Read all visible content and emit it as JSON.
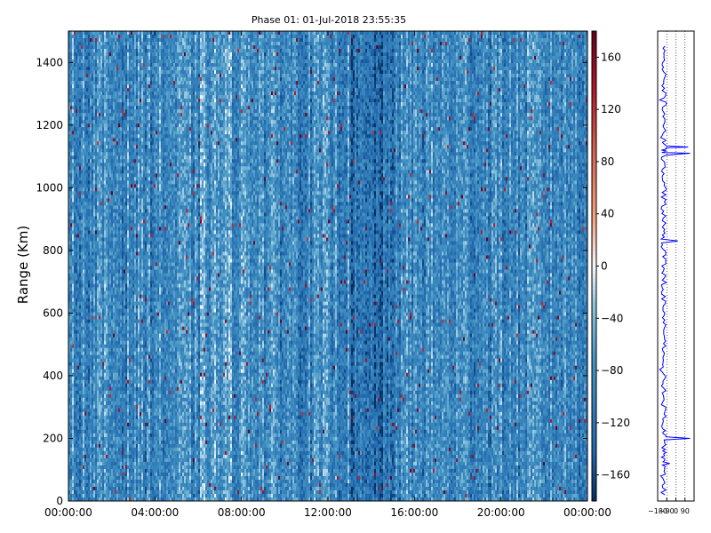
{
  "chart_data": [
    {
      "type": "heatmap",
      "title": "Phase 01: 01-Jul-2018 23:55:35",
      "xlabel": "",
      "ylabel": "Range (Km)",
      "x_ticks": [
        "00:00:00",
        "04:00:00",
        "08:00:00",
        "12:00:00",
        "16:00:00",
        "20:00:00",
        "00:00:00"
      ],
      "x_range_hours": [
        0,
        24
      ],
      "y_ticks": [
        0,
        200,
        400,
        600,
        800,
        1000,
        1200,
        1400
      ],
      "ylim": [
        0,
        1500
      ],
      "colorbar": {
        "ticks": [
          -160,
          -120,
          -80,
          -40,
          0,
          40,
          80,
          120,
          160
        ],
        "range": [
          -180,
          180
        ],
        "colormap": "diverging blue-white-red (RdBu_r)",
        "colors": {
          "low": "#0b2f5c",
          "mid": "#f7f7f7",
          "high": "#67001f"
        }
      },
      "description": "Phase values (degrees) vs time of day and range; predominantly -60 to -160 (blue) with sparse red speckles; darker band around 13:00-15:00."
    },
    {
      "type": "line",
      "xlabel": "",
      "ylabel": "",
      "x_ticks": [
        -180,
        -90,
        0,
        90
      ],
      "xlim": [
        -180,
        180
      ],
      "ylim": [
        0,
        1500
      ],
      "series_color": "#0000ff",
      "grid": "vertical dotted",
      "profile": [
        {
          "range": 20,
          "phase": -110
        },
        {
          "range": 80,
          "phase": -150
        },
        {
          "range": 120,
          "phase": -60
        },
        {
          "range": 160,
          "phase": -130
        },
        {
          "range": 200,
          "phase": 140
        },
        {
          "range": 240,
          "phase": -140
        },
        {
          "range": 300,
          "phase": -100
        },
        {
          "range": 360,
          "phase": -120
        },
        {
          "range": 420,
          "phase": -160
        },
        {
          "range": 480,
          "phase": -130
        },
        {
          "range": 540,
          "phase": -120
        },
        {
          "range": 600,
          "phase": -110
        },
        {
          "range": 660,
          "phase": -140
        },
        {
          "range": 720,
          "phase": -100
        },
        {
          "range": 780,
          "phase": -130
        },
        {
          "range": 830,
          "phase": 20
        },
        {
          "range": 880,
          "phase": -120
        },
        {
          "range": 940,
          "phase": -140
        },
        {
          "range": 1000,
          "phase": -100
        },
        {
          "range": 1060,
          "phase": -130
        },
        {
          "range": 1110,
          "phase": 140
        },
        {
          "range": 1130,
          "phase": 120
        },
        {
          "range": 1160,
          "phase": -150
        },
        {
          "range": 1220,
          "phase": -110
        },
        {
          "range": 1280,
          "phase": -160
        },
        {
          "range": 1340,
          "phase": -120
        },
        {
          "range": 1400,
          "phase": -130
        },
        {
          "range": 1460,
          "phase": -100
        }
      ]
    }
  ]
}
